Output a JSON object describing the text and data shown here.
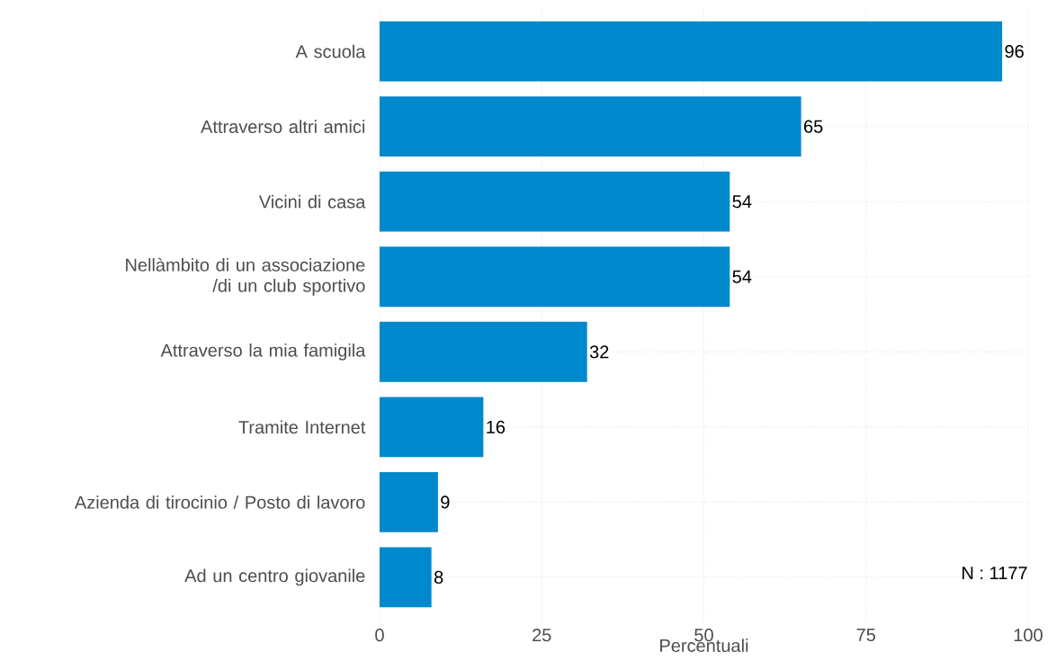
{
  "chart_data": {
    "type": "bar",
    "orientation": "horizontal",
    "categories": [
      "A scuola",
      "Attraverso altri amici",
      "Vicini di casa",
      "Nellàmbito di un associazione /di un club sportivo",
      "Attraverso la mia famigila",
      "Tramite Internet",
      "Azienda di tirocinio / Posto di lavoro",
      "Ad un centro giovanile"
    ],
    "values": [
      96,
      65,
      54,
      54,
      32,
      16,
      9,
      8
    ],
    "color": "#0088cc",
    "xlim": [
      0,
      100
    ],
    "xticks": [
      0,
      25,
      50,
      75,
      100
    ],
    "xlabel": "Percentuali",
    "annotations": [
      "N : 1177"
    ],
    "data_labels": true,
    "grid": true
  }
}
